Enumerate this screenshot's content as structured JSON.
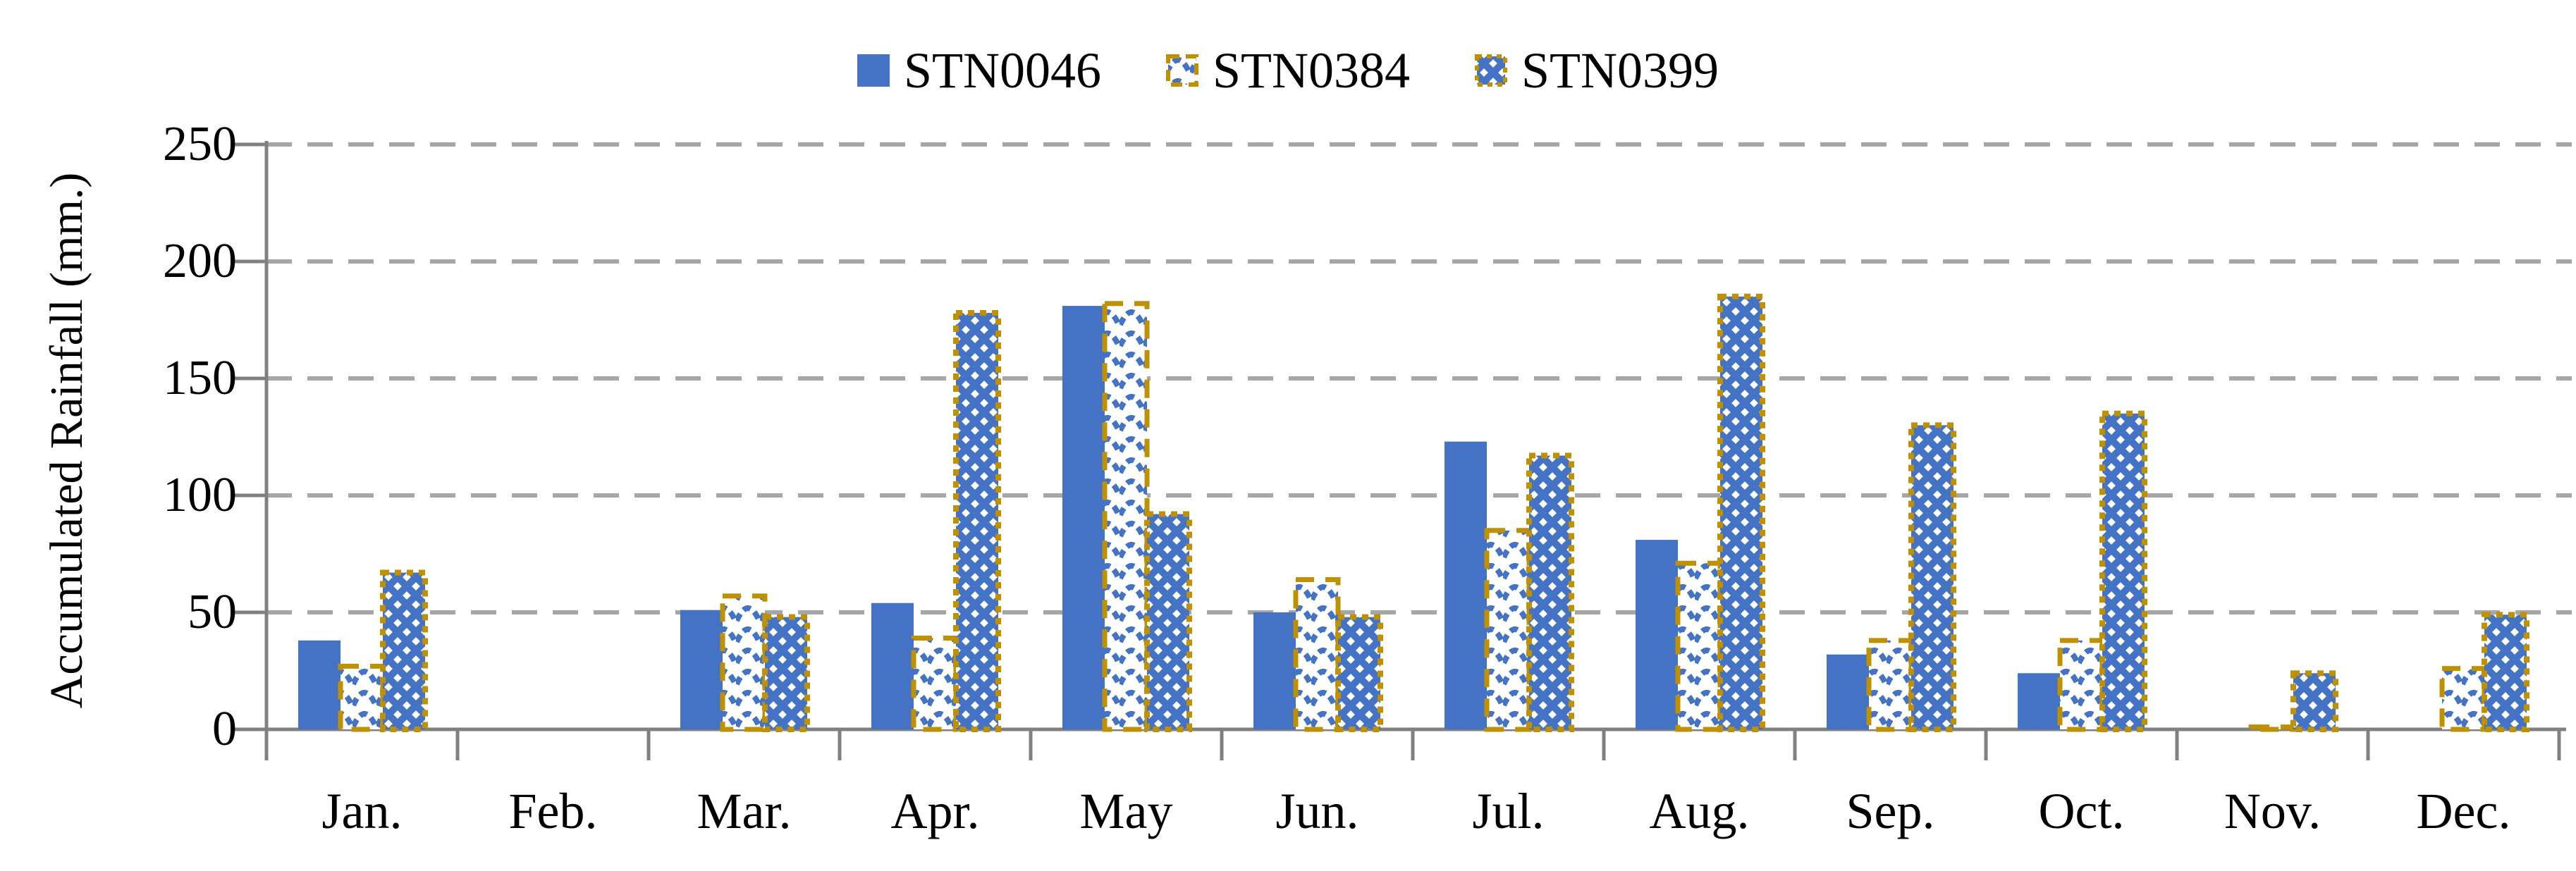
{
  "chart_data": {
    "type": "bar",
    "categories": [
      "Jan.",
      "Feb.",
      "Mar.",
      "Apr.",
      "May",
      "Jun.",
      "Jul.",
      "Aug.",
      "Sep.",
      "Oct.",
      "Nov.",
      "Dec."
    ],
    "series": [
      {
        "name": "STN0046",
        "style": "solid-blue",
        "values": [
          38,
          0,
          51,
          54,
          181,
          50,
          123,
          81,
          32,
          24,
          0,
          0
        ]
      },
      {
        "name": "STN0384",
        "style": "blue-wave-pattern-gold-dashed-border",
        "values": [
          27,
          0,
          57,
          39,
          182,
          64,
          85,
          71,
          38,
          38,
          1,
          26
        ]
      },
      {
        "name": "STN0399",
        "style": "blue-diamond-pattern-gold-dotted-border",
        "values": [
          67,
          0,
          48,
          178,
          92,
          48,
          117,
          185,
          130,
          135,
          24,
          49
        ]
      }
    ],
    "xlabel": "",
    "ylabel": "Accumulated Rainfall (mm.)",
    "ylim": [
      0,
      250
    ],
    "yticks": [
      0,
      50,
      100,
      150,
      200,
      250
    ],
    "grid": "horizontal-dashed",
    "legend_position": "top-center",
    "colors": {
      "bar_blue": "#4472C4",
      "pattern_border_gold": "#BF9000",
      "gridline": "#A6A6A6",
      "axis": "#808080",
      "text": "#000000",
      "background": "#FFFFFF"
    }
  }
}
